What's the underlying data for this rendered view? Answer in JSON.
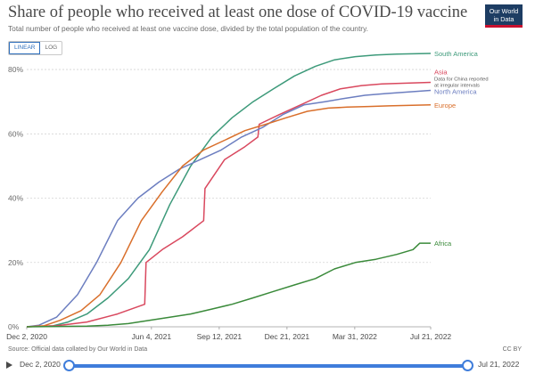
{
  "header": {
    "title": "Share of people who received at least one dose of COVID-19 vaccine",
    "subtitle": "Total number of people who received at least one vaccine dose, divided by the total population of the country.",
    "logo_line1": "Our World",
    "logo_line2": "in Data"
  },
  "toggle": {
    "linear_label": "LINEAR",
    "log_label": "LOG",
    "selected": "LINEAR"
  },
  "footer": {
    "source": "Source: Official data collated by Our World in Data",
    "license": "CC BY"
  },
  "timeline": {
    "start_label": "Dec 2, 2020",
    "end_label": "Jul 21, 2022"
  },
  "chart_data": {
    "type": "line",
    "title": "Share of people who received at least one dose of COVID-19 vaccine",
    "xlabel": "",
    "ylabel": "",
    "x_domain": [
      "2020-12-02",
      "2022-07-21"
    ],
    "ylim": [
      0,
      85
    ],
    "y_ticks": [
      0,
      20,
      40,
      60,
      80
    ],
    "y_tick_format": "percent",
    "x_ticks": [
      {
        "date": "2020-12-02",
        "label": "Dec 2, 2020"
      },
      {
        "date": "2021-06-04",
        "label": "Jun 4, 2021"
      },
      {
        "date": "2021-09-12",
        "label": "Sep 12, 2021"
      },
      {
        "date": "2021-12-21",
        "label": "Dec 21, 2021"
      },
      {
        "date": "2022-03-31",
        "label": "Mar 31, 2022"
      },
      {
        "date": "2022-07-21",
        "label": "Jul 21, 2022"
      }
    ],
    "grid": "horizontal-dotted",
    "legend": "direct labels at line ends (right)",
    "annotation": "Data for China reported at irregular intervals",
    "series": [
      {
        "name": "South America",
        "color": "#3d9a7a",
        "points": [
          [
            "2020-12-02",
            0
          ],
          [
            "2021-01-10",
            0.3
          ],
          [
            "2021-02-01",
            1.5
          ],
          [
            "2021-03-01",
            4
          ],
          [
            "2021-04-01",
            9
          ],
          [
            "2021-05-01",
            15
          ],
          [
            "2021-06-01",
            24
          ],
          [
            "2021-07-01",
            38
          ],
          [
            "2021-08-01",
            50
          ],
          [
            "2021-09-01",
            59
          ],
          [
            "2021-10-01",
            65
          ],
          [
            "2021-11-01",
            70
          ],
          [
            "2021-12-01",
            74
          ],
          [
            "2022-01-01",
            78
          ],
          [
            "2022-02-01",
            81
          ],
          [
            "2022-03-01",
            83
          ],
          [
            "2022-04-01",
            84
          ],
          [
            "2022-05-01",
            84.5
          ],
          [
            "2022-06-01",
            84.8
          ],
          [
            "2022-07-21",
            85
          ]
        ]
      },
      {
        "name": "Asia",
        "color": "#d9485e",
        "points": [
          [
            "2020-12-02",
            0
          ],
          [
            "2021-01-15",
            0.3
          ],
          [
            "2021-03-01",
            1.5
          ],
          [
            "2021-04-15",
            4
          ],
          [
            "2021-05-25",
            7
          ],
          [
            "2021-05-27",
            20
          ],
          [
            "2021-06-20",
            24
          ],
          [
            "2021-07-20",
            28
          ],
          [
            "2021-08-20",
            33
          ],
          [
            "2021-08-22",
            43
          ],
          [
            "2021-09-20",
            52
          ],
          [
            "2021-10-20",
            56
          ],
          [
            "2021-11-08",
            59
          ],
          [
            "2021-11-10",
            63
          ],
          [
            "2021-12-10",
            66
          ],
          [
            "2022-01-10",
            69
          ],
          [
            "2022-02-10",
            72
          ],
          [
            "2022-03-10",
            74
          ],
          [
            "2022-04-10",
            75
          ],
          [
            "2022-05-10",
            75.5
          ],
          [
            "2022-07-21",
            76
          ]
        ]
      },
      {
        "name": "North America",
        "color": "#6c7ec0",
        "points": [
          [
            "2020-12-02",
            0
          ],
          [
            "2020-12-20",
            0.5
          ],
          [
            "2021-01-15",
            3
          ],
          [
            "2021-02-15",
            10
          ],
          [
            "2021-03-15",
            20
          ],
          [
            "2021-04-15",
            33
          ],
          [
            "2021-05-15",
            40
          ],
          [
            "2021-06-15",
            45
          ],
          [
            "2021-07-15",
            49
          ],
          [
            "2021-08-15",
            52
          ],
          [
            "2021-09-15",
            55
          ],
          [
            "2021-10-15",
            59
          ],
          [
            "2021-11-15",
            62
          ],
          [
            "2021-12-15",
            66
          ],
          [
            "2022-01-15",
            69
          ],
          [
            "2022-02-15",
            70
          ],
          [
            "2022-03-15",
            71
          ],
          [
            "2022-04-15",
            72
          ],
          [
            "2022-05-15",
            72.5
          ],
          [
            "2022-07-21",
            73.5
          ]
        ]
      },
      {
        "name": "Europe",
        "color": "#d96f2b",
        "points": [
          [
            "2020-12-02",
            0
          ],
          [
            "2020-12-27",
            0.3
          ],
          [
            "2021-01-20",
            2
          ],
          [
            "2021-02-20",
            5
          ],
          [
            "2021-03-20",
            10
          ],
          [
            "2021-04-20",
            20
          ],
          [
            "2021-05-20",
            33
          ],
          [
            "2021-06-20",
            42
          ],
          [
            "2021-07-20",
            50
          ],
          [
            "2021-08-20",
            55
          ],
          [
            "2021-09-20",
            58
          ],
          [
            "2021-10-20",
            61
          ],
          [
            "2021-11-20",
            63
          ],
          [
            "2021-12-20",
            65
          ],
          [
            "2022-01-20",
            67
          ],
          [
            "2022-02-20",
            68
          ],
          [
            "2022-03-20",
            68.3
          ],
          [
            "2022-04-20",
            68.5
          ],
          [
            "2022-05-20",
            68.7
          ],
          [
            "2022-07-21",
            69
          ]
        ]
      },
      {
        "name": "Africa",
        "color": "#3a8a3a",
        "points": [
          [
            "2020-12-02",
            0
          ],
          [
            "2021-03-01",
            0.2
          ],
          [
            "2021-04-01",
            0.5
          ],
          [
            "2021-05-01",
            1
          ],
          [
            "2021-06-01",
            2
          ],
          [
            "2021-07-01",
            3
          ],
          [
            "2021-08-01",
            4
          ],
          [
            "2021-09-01",
            5.5
          ],
          [
            "2021-10-01",
            7
          ],
          [
            "2021-11-01",
            9
          ],
          [
            "2021-12-01",
            11
          ],
          [
            "2022-01-01",
            13
          ],
          [
            "2022-02-01",
            15
          ],
          [
            "2022-03-01",
            18
          ],
          [
            "2022-04-01",
            20
          ],
          [
            "2022-05-01",
            21
          ],
          [
            "2022-06-01",
            22.5
          ],
          [
            "2022-06-25",
            24
          ],
          [
            "2022-07-05",
            26
          ],
          [
            "2022-07-21",
            26
          ]
        ]
      }
    ]
  }
}
